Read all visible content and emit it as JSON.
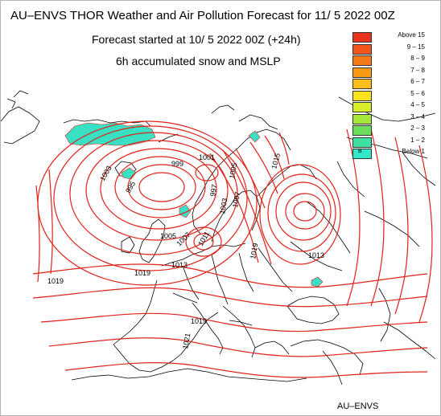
{
  "header": {
    "title": "AU–ENVS THOR Weather and Air Pollution Forecast for 11/ 5 2022  00Z",
    "forecast_started": "Forecast started at 10/ 5 2022  00Z (+24h)",
    "parameter": "6h accumulated snow and MSLP"
  },
  "legend": {
    "items": [
      {
        "label": "Above   15",
        "color": "#e8331f"
      },
      {
        "label": "9 – 15",
        "color": "#f3561a"
      },
      {
        "label": "8 –  9",
        "color": "#f67a17"
      },
      {
        "label": "7 –  8",
        "color": "#f89a16"
      },
      {
        "label": "6 –  7",
        "color": "#fbbf1b"
      },
      {
        "label": "5 –  6",
        "color": "#fbe41f"
      },
      {
        "label": "4 –  5",
        "color": "#d6ee2a"
      },
      {
        "label": "3 –  4",
        "color": "#a6e63a"
      },
      {
        "label": "2 –  3",
        "color": "#6ddd5e"
      },
      {
        "label": "1 –  2",
        "color": "#3fe0a0"
      },
      {
        "label": "Below   1",
        "color": "#33e8c8",
        "mark": "B"
      }
    ]
  },
  "isobars": {
    "color": "#e0221a",
    "labels": [
      "1001",
      "999",
      "1003",
      "995",
      "1005",
      "997",
      "1003",
      "1007",
      "1015",
      "1005",
      "1007",
      "1011",
      "1013",
      "1019",
      "1019",
      "1019",
      "1013",
      "1019",
      "1021"
    ]
  },
  "snow_color": "#3ae0c4",
  "credit": "AU–ENVS"
}
